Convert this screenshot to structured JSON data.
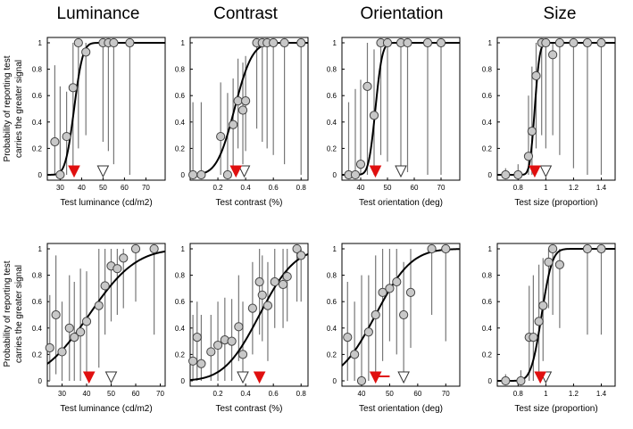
{
  "figure": {
    "column_titles": [
      "Luminance",
      "Contrast",
      "Orientation",
      "Size"
    ],
    "ylabel_line1": "Probability of reporting test",
    "ylabel_line2": "carries the greater signal"
  },
  "colors": {
    "marker_fill": "#c8c8c8",
    "curve": "#000000",
    "error_bar": "#777777",
    "red": "#e01010"
  },
  "chart_data": [
    {
      "type": "scatter",
      "id": "lum-top",
      "row": 0,
      "col": 0,
      "xlabel": "Test luminance (cd/m2)",
      "xlim": [
        24,
        79
      ],
      "ylim": [
        0,
        1
      ],
      "xticks": [
        "30",
        "40",
        "50",
        "60",
        "70"
      ],
      "xtick_values": [
        30,
        40,
        50,
        60,
        70
      ],
      "yticks": [
        "0",
        "0.2",
        "0.4",
        "0.6",
        "0.8",
        "1"
      ],
      "ytick_values": [
        0,
        0.2,
        0.4,
        0.6,
        0.8,
        1
      ],
      "points": [
        {
          "x": 27.5,
          "y": 0.25,
          "lo": 0,
          "hi": 0.83
        },
        {
          "x": 30,
          "y": 0,
          "lo": 0,
          "hi": 0.67
        },
        {
          "x": 33,
          "y": 0.29,
          "lo": 0,
          "hi": 0.63
        },
        {
          "x": 36,
          "y": 0.66,
          "lo": 0.03,
          "hi": 1
        },
        {
          "x": 38.5,
          "y": 1,
          "lo": 0.2,
          "hi": 1
        },
        {
          "x": 42,
          "y": 0.93,
          "lo": 0.3,
          "hi": 1
        },
        {
          "x": 50,
          "y": 1,
          "lo": 0.25,
          "hi": 1
        },
        {
          "x": 52.5,
          "y": 1,
          "lo": 0.18,
          "hi": 1
        },
        {
          "x": 55,
          "y": 1,
          "lo": 0.08,
          "hi": 1
        },
        {
          "x": 62.5,
          "y": 1,
          "lo": 0,
          "hi": 1
        }
      ],
      "curve": {
        "mu": 36.5,
        "sigma": 3.2
      },
      "markers": {
        "pse": 36.5,
        "standard": 50
      }
    },
    {
      "type": "scatter",
      "id": "con-top",
      "row": 0,
      "col": 1,
      "xlabel": "Test contrast (%)",
      "xlim": [
        0,
        0.85
      ],
      "ylim": [
        0,
        1
      ],
      "xticks": [
        "0.2",
        "0.4",
        "0.6",
        "0.8"
      ],
      "xtick_values": [
        0.2,
        0.4,
        0.6,
        0.8
      ],
      "yticks": [
        "0",
        "0.2",
        "0.4",
        "0.6",
        "0.8",
        "1"
      ],
      "ytick_values": [
        0,
        0.2,
        0.4,
        0.6,
        0.8,
        1
      ],
      "points": [
        {
          "x": 0.02,
          "y": 0,
          "lo": 0,
          "hi": 0.55
        },
        {
          "x": 0.08,
          "y": 0,
          "lo": 0,
          "hi": 0.55
        },
        {
          "x": 0.22,
          "y": 0.29,
          "lo": 0,
          "hi": 0.7
        },
        {
          "x": 0.27,
          "y": 0,
          "lo": 0,
          "hi": 0.62
        },
        {
          "x": 0.31,
          "y": 0.38,
          "lo": 0.05,
          "hi": 0.73
        },
        {
          "x": 0.345,
          "y": 0.56,
          "lo": 0.2,
          "hi": 0.88
        },
        {
          "x": 0.38,
          "y": 0.49,
          "lo": 0.08,
          "hi": 0.85
        },
        {
          "x": 0.4,
          "y": 0.56,
          "lo": 0.18,
          "hi": 0.9
        },
        {
          "x": 0.48,
          "y": 1,
          "lo": 0.35,
          "hi": 1
        },
        {
          "x": 0.52,
          "y": 1,
          "lo": 0.25,
          "hi": 1
        },
        {
          "x": 0.555,
          "y": 1,
          "lo": 0.2,
          "hi": 1
        },
        {
          "x": 0.6,
          "y": 1,
          "lo": 0.15,
          "hi": 1
        },
        {
          "x": 0.68,
          "y": 1,
          "lo": 0.08,
          "hi": 1
        },
        {
          "x": 0.8,
          "y": 1,
          "lo": 0,
          "hi": 1
        }
      ],
      "curve": {
        "mu": 0.32,
        "sigma": 0.1
      },
      "markers": {
        "pse": 0.33,
        "standard": 0.39
      }
    },
    {
      "type": "scatter",
      "id": "ori-top",
      "row": 0,
      "col": 2,
      "xlabel": "Test orientation (deg)",
      "xlim": [
        33,
        77
      ],
      "ylim": [
        0,
        1
      ],
      "xticks": [
        "40",
        "50",
        "60",
        "70"
      ],
      "xtick_values": [
        40,
        50,
        60,
        70
      ],
      "yticks": [
        "0",
        "0.2",
        "0.4",
        "0.6",
        "0.8",
        "1"
      ],
      "ytick_values": [
        0,
        0.2,
        0.4,
        0.6,
        0.8,
        1
      ],
      "points": [
        {
          "x": 35.5,
          "y": 0,
          "lo": 0,
          "hi": 0.55
        },
        {
          "x": 38,
          "y": 0,
          "lo": 0,
          "hi": 0.65
        },
        {
          "x": 40,
          "y": 0.08,
          "lo": 0,
          "hi": 0.72
        },
        {
          "x": 42.5,
          "y": 0.67,
          "lo": 0,
          "hi": 1
        },
        {
          "x": 45,
          "y": 0.45,
          "lo": 0,
          "hi": 0.95
        },
        {
          "x": 47.5,
          "y": 1,
          "lo": 0.15,
          "hi": 1
        },
        {
          "x": 50,
          "y": 1,
          "lo": 0.1,
          "hi": 1
        },
        {
          "x": 55,
          "y": 1,
          "lo": 0.05,
          "hi": 1
        },
        {
          "x": 57.5,
          "y": 1,
          "lo": 0.02,
          "hi": 1
        },
        {
          "x": 65,
          "y": 1,
          "lo": 0,
          "hi": 1
        },
        {
          "x": 70,
          "y": 1,
          "lo": 0,
          "hi": 1
        }
      ],
      "curve": {
        "mu": 45.5,
        "sigma": 2.0
      },
      "markers": {
        "pse": 45.5,
        "standard": 55
      }
    },
    {
      "type": "scatter",
      "id": "size-top",
      "row": 0,
      "col": 3,
      "xlabel": "Test size (proportion)",
      "xlim": [
        0.65,
        1.5
      ],
      "ylim": [
        0,
        1
      ],
      "xticks": [
        "0.8",
        "1",
        "1.2",
        "1.4"
      ],
      "xtick_values": [
        0.8,
        1,
        1.2,
        1.4
      ],
      "yticks": [
        "0",
        "0.2",
        "0.4",
        "0.6",
        "0.8",
        "1"
      ],
      "ytick_values": [
        0,
        0.2,
        0.4,
        0.6,
        0.8,
        1
      ],
      "points": [
        {
          "x": 0.71,
          "y": 0,
          "lo": 0,
          "hi": 0.05
        },
        {
          "x": 0.8,
          "y": 0,
          "lo": 0,
          "hi": 0.08
        },
        {
          "x": 0.875,
          "y": 0.14,
          "lo": 0,
          "hi": 0.6
        },
        {
          "x": 0.9,
          "y": 0.33,
          "lo": 0,
          "hi": 0.82
        },
        {
          "x": 0.93,
          "y": 0.75,
          "lo": 0.2,
          "hi": 1
        },
        {
          "x": 0.97,
          "y": 1,
          "lo": 0.3,
          "hi": 1
        },
        {
          "x": 1.0,
          "y": 1,
          "lo": 0.2,
          "hi": 1
        },
        {
          "x": 1.05,
          "y": 0.91,
          "lo": 0.3,
          "hi": 1
        },
        {
          "x": 1.1,
          "y": 1,
          "lo": 0.15,
          "hi": 1
        },
        {
          "x": 1.2,
          "y": 1,
          "lo": 0.05,
          "hi": 1
        },
        {
          "x": 1.3,
          "y": 1,
          "lo": 0,
          "hi": 1
        },
        {
          "x": 1.4,
          "y": 1,
          "lo": 0,
          "hi": 1
        }
      ],
      "curve": {
        "mu": 0.92,
        "sigma": 0.028
      },
      "markers": {
        "pse": 0.92,
        "standard": 1.0
      }
    },
    {
      "type": "scatter",
      "id": "lum-bottom",
      "row": 1,
      "col": 0,
      "xlabel": "Test luminance (cd/m2)",
      "xlim": [
        24,
        72
      ],
      "ylim": [
        0,
        1
      ],
      "xticks": [
        "30",
        "40",
        "50",
        "60",
        "70"
      ],
      "xtick_values": [
        30,
        40,
        50,
        60,
        70
      ],
      "yticks": [
        "0",
        "0.2",
        "0.4",
        "0.6",
        "0.8",
        "1"
      ],
      "ytick_values": [
        0,
        0.2,
        0.4,
        0.6,
        0.8,
        1
      ],
      "points": [
        {
          "x": 25,
          "y": 0.25,
          "lo": 0,
          "hi": 0.65
        },
        {
          "x": 27.5,
          "y": 0.5,
          "lo": 0.05,
          "hi": 0.95
        },
        {
          "x": 30,
          "y": 0.22,
          "lo": 0,
          "hi": 0.6
        },
        {
          "x": 33,
          "y": 0.4,
          "lo": 0,
          "hi": 0.8
        },
        {
          "x": 35,
          "y": 0.33,
          "lo": 0,
          "hi": 0.75
        },
        {
          "x": 37.5,
          "y": 0.37,
          "lo": 0,
          "hi": 0.85
        },
        {
          "x": 40,
          "y": 0.45,
          "lo": 0.05,
          "hi": 0.83
        },
        {
          "x": 45,
          "y": 0.57,
          "lo": 0.1,
          "hi": 1
        },
        {
          "x": 47.5,
          "y": 0.72,
          "lo": 0.35,
          "hi": 1
        },
        {
          "x": 50,
          "y": 0.87,
          "lo": 0.45,
          "hi": 1
        },
        {
          "x": 52.5,
          "y": 0.85,
          "lo": 0.5,
          "hi": 1
        },
        {
          "x": 55,
          "y": 0.93,
          "lo": 0.55,
          "hi": 1
        },
        {
          "x": 60,
          "y": 1,
          "lo": 0.6,
          "hi": 1
        },
        {
          "x": 67.5,
          "y": 1,
          "lo": 0.35,
          "hi": 1
        }
      ],
      "curve": {
        "mu": 41,
        "sigma": 15
      },
      "markers": {
        "pse": 41,
        "standard": 50
      }
    },
    {
      "type": "scatter",
      "id": "con-bottom",
      "row": 1,
      "col": 1,
      "xlabel": "Test contrast (%)",
      "xlim": [
        0,
        0.85
      ],
      "ylim": [
        0,
        1
      ],
      "xticks": [
        "0.2",
        "0.4",
        "0.6",
        "0.8"
      ],
      "xtick_values": [
        0.2,
        0.4,
        0.6,
        0.8
      ],
      "yticks": [
        "0",
        "0.2",
        "0.4",
        "0.6",
        "0.8",
        "1"
      ],
      "ytick_values": [
        0,
        0.2,
        0.4,
        0.6,
        0.8,
        1
      ],
      "points": [
        {
          "x": 0.02,
          "y": 0.15,
          "lo": 0,
          "hi": 0.5
        },
        {
          "x": 0.05,
          "y": 0.33,
          "lo": 0,
          "hi": 0.6
        },
        {
          "x": 0.08,
          "y": 0.13,
          "lo": 0,
          "hi": 0.5
        },
        {
          "x": 0.15,
          "y": 0.22,
          "lo": 0,
          "hi": 0.5
        },
        {
          "x": 0.2,
          "y": 0.27,
          "lo": 0,
          "hi": 0.6
        },
        {
          "x": 0.25,
          "y": 0.31,
          "lo": 0,
          "hi": 0.63
        },
        {
          "x": 0.3,
          "y": 0.3,
          "lo": 0,
          "hi": 0.62
        },
        {
          "x": 0.35,
          "y": 0.41,
          "lo": 0.15,
          "hi": 0.8
        },
        {
          "x": 0.38,
          "y": 0.2,
          "lo": 0,
          "hi": 0.6
        },
        {
          "x": 0.45,
          "y": 0.55,
          "lo": 0.2,
          "hi": 0.9
        },
        {
          "x": 0.5,
          "y": 0.75,
          "lo": 0.35,
          "hi": 1
        },
        {
          "x": 0.52,
          "y": 0.65,
          "lo": 0.3,
          "hi": 0.95
        },
        {
          "x": 0.56,
          "y": 0.57,
          "lo": 0.15,
          "hi": 0.9
        },
        {
          "x": 0.61,
          "y": 0.75,
          "lo": 0.4,
          "hi": 1
        },
        {
          "x": 0.67,
          "y": 0.73,
          "lo": 0.4,
          "hi": 1
        },
        {
          "x": 0.7,
          "y": 0.79,
          "lo": 0.45,
          "hi": 1
        },
        {
          "x": 0.77,
          "y": 1,
          "lo": 0.6,
          "hi": 1
        },
        {
          "x": 0.8,
          "y": 0.95,
          "lo": 0.6,
          "hi": 1
        }
      ],
      "curve": {
        "mu": 0.5,
        "sigma": 0.2
      },
      "markers": {
        "pse": 0.5,
        "standard": 0.38
      }
    },
    {
      "type": "scatter",
      "id": "ori-bottom",
      "row": 1,
      "col": 2,
      "xlabel": "Test orientation (deg)",
      "xlim": [
        33,
        75
      ],
      "ylim": [
        0,
        1
      ],
      "xticks": [
        "40",
        "50",
        "60",
        "70"
      ],
      "xtick_values": [
        40,
        50,
        60,
        70
      ],
      "yticks": [
        "0",
        "0.2",
        "0.4",
        "0.6",
        "0.8",
        "1"
      ],
      "ytick_values": [
        0,
        0.2,
        0.4,
        0.6,
        0.8,
        1
      ],
      "points": [
        {
          "x": 35,
          "y": 0.33,
          "lo": 0,
          "hi": 0.75
        },
        {
          "x": 37.5,
          "y": 0.2,
          "lo": 0,
          "hi": 0.6
        },
        {
          "x": 40,
          "y": 0,
          "lo": 0,
          "hi": 0.8
        },
        {
          "x": 42.5,
          "y": 0.37,
          "lo": 0,
          "hi": 0.8
        },
        {
          "x": 45,
          "y": 0.5,
          "lo": 0,
          "hi": 0.95
        },
        {
          "x": 47.5,
          "y": 0.67,
          "lo": 0.15,
          "hi": 1
        },
        {
          "x": 50,
          "y": 0.7,
          "lo": 0.3,
          "hi": 1
        },
        {
          "x": 52.5,
          "y": 0.75,
          "lo": 0.2,
          "hi": 1
        },
        {
          "x": 55,
          "y": 0.5,
          "lo": 0,
          "hi": 0.9
        },
        {
          "x": 57.5,
          "y": 0.67,
          "lo": 0.25,
          "hi": 1
        },
        {
          "x": 65,
          "y": 1,
          "lo": 0.5,
          "hi": 1
        },
        {
          "x": 70,
          "y": 1,
          "lo": 0.3,
          "hi": 1
        }
      ],
      "curve": {
        "mu": 45,
        "sigma": 10
      },
      "markers": {
        "pse": 45,
        "standard": 55,
        "pse_err_low": 44,
        "pse_err_high": 50
      }
    },
    {
      "type": "scatter",
      "id": "size-bottom",
      "row": 1,
      "col": 3,
      "xlabel": "Test size (proportion)",
      "xlim": [
        0.65,
        1.5
      ],
      "ylim": [
        0,
        1
      ],
      "xticks": [
        "0.8",
        "1",
        "1.2",
        "1.4"
      ],
      "xtick_values": [
        0.8,
        1,
        1.2,
        1.4
      ],
      "yticks": [
        "0",
        "0.2",
        "0.4",
        "0.6",
        "0.8",
        "1"
      ],
      "ytick_values": [
        0,
        0.2,
        0.4,
        0.6,
        0.8,
        1
      ],
      "points": [
        {
          "x": 0.71,
          "y": 0,
          "lo": 0,
          "hi": 0.05
        },
        {
          "x": 0.82,
          "y": 0,
          "lo": 0,
          "hi": 0.08
        },
        {
          "x": 0.88,
          "y": 0.33,
          "lo": 0,
          "hi": 0.72
        },
        {
          "x": 0.91,
          "y": 0.33,
          "lo": 0,
          "hi": 0.8
        },
        {
          "x": 0.95,
          "y": 0.45,
          "lo": 0.05,
          "hi": 0.88
        },
        {
          "x": 0.98,
          "y": 0.57,
          "lo": 0.15,
          "hi": 0.93
        },
        {
          "x": 1.02,
          "y": 0.9,
          "lo": 0.55,
          "hi": 1
        },
        {
          "x": 1.05,
          "y": 1,
          "lo": 0.5,
          "hi": 1
        },
        {
          "x": 1.1,
          "y": 0.88,
          "lo": 0.4,
          "hi": 1
        },
        {
          "x": 1.3,
          "y": 1,
          "lo": 0.35,
          "hi": 1
        },
        {
          "x": 1.4,
          "y": 1,
          "lo": 0.35,
          "hi": 1
        }
      ],
      "curve": {
        "mu": 0.97,
        "sigma": 0.06
      },
      "markers": {
        "pse": 0.96,
        "standard": 1.0,
        "pse_err_low": 0.94,
        "pse_err_high": 1.0
      }
    }
  ]
}
